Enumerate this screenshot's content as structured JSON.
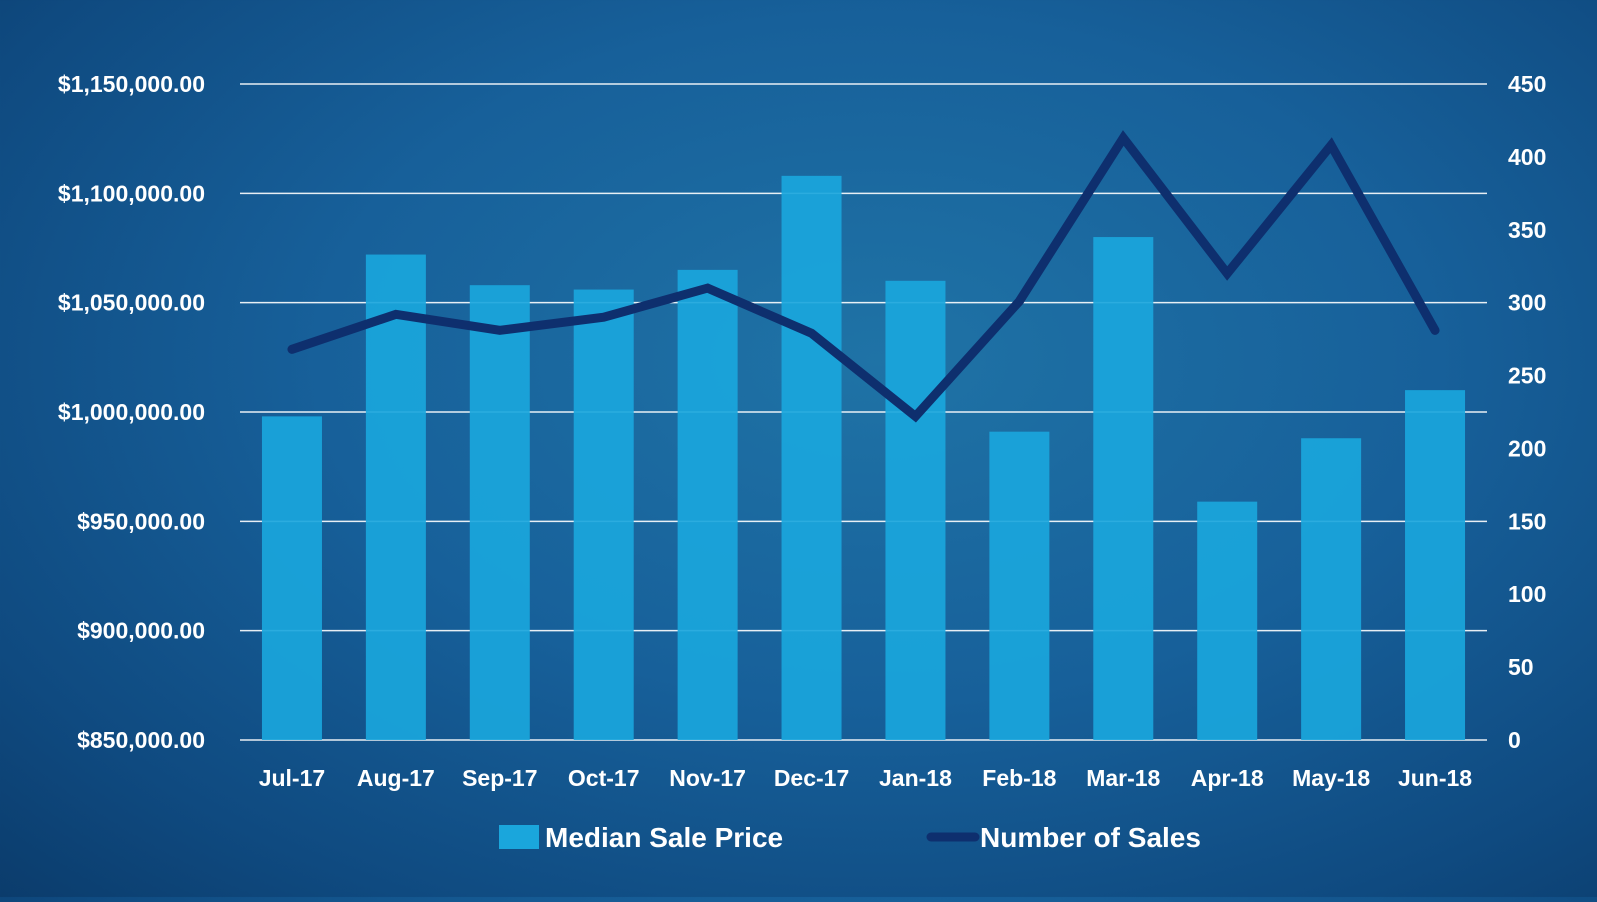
{
  "chart_data": {
    "type": "bar+line",
    "categories": [
      "Jul-17",
      "Aug-17",
      "Sep-17",
      "Oct-17",
      "Nov-17",
      "Dec-17",
      "Jan-18",
      "Feb-18",
      "Mar-18",
      "Apr-18",
      "May-18",
      "Jun-18"
    ],
    "series": [
      {
        "name": "Median Sale Price",
        "type": "bar",
        "axis": "left",
        "color": "#1aa6dc",
        "values": [
          998000,
          1072000,
          1058000,
          1056000,
          1065000,
          1108000,
          1060000,
          991000,
          1080000,
          959000,
          988000,
          1010000
        ]
      },
      {
        "name": "Number of Sales",
        "type": "line",
        "axis": "right",
        "color": "#0e2f6e",
        "values": [
          268,
          292,
          281,
          290,
          310,
          279,
          222,
          301,
          413,
          320,
          408,
          281
        ]
      }
    ],
    "y_left": {
      "min": 850000,
      "max": 1150000,
      "step": 50000,
      "tick_labels": [
        "$850,000.00",
        "$900,000.00",
        "$950,000.00",
        "$1,000,000.00",
        "$1,050,000.00",
        "$1,100,000.00",
        "$1,150,000.00"
      ]
    },
    "y_right": {
      "min": 0,
      "max": 450,
      "step": 50,
      "tick_labels": [
        "0",
        "50",
        "100",
        "150",
        "200",
        "250",
        "300",
        "350",
        "400",
        "450"
      ]
    },
    "grid": true,
    "legend_position": "bottom-center"
  }
}
